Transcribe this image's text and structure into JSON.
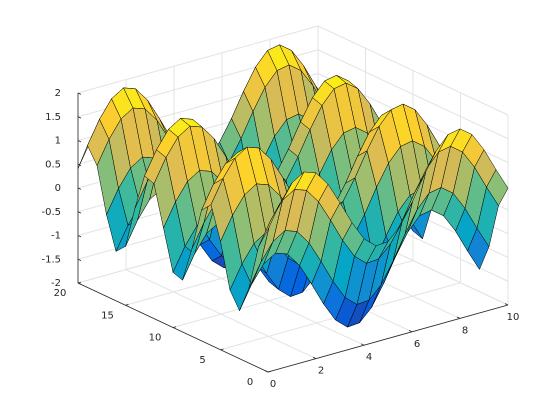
{
  "chart_data": {
    "type": "surface",
    "x": [
      0,
      0.5,
      1,
      1.5,
      2,
      2.5,
      3,
      3.5,
      4,
      4.5,
      5,
      5.5,
      6,
      6.5,
      7,
      7.5,
      8,
      8.5,
      9,
      9.5,
      10
    ],
    "y": [
      0,
      1,
      2,
      3,
      4,
      5,
      6,
      7,
      8,
      9,
      10,
      11,
      12,
      13,
      14,
      15,
      16,
      17,
      18,
      19,
      20
    ],
    "z": [
      [
        1,
        1.48,
        1.84,
        2,
        1.91,
        1.6,
        1.14,
        0.65,
        0.24,
        0.02,
        0.04,
        0.29,
        0.72,
        1.22,
        1.66,
        1.94,
        1.99,
        1.8,
        1.41,
        0.92,
        0.46
      ],
      [
        0.54,
        1.02,
        1.38,
        1.54,
        1.45,
        1.14,
        0.68,
        0.19,
        -0.22,
        -0.44,
        -0.42,
        -0.17,
        0.26,
        0.76,
        1.2,
        1.48,
        1.53,
        1.34,
        0.95,
        0.46,
        0
      ],
      [
        -0.42,
        0.06,
        0.42,
        0.58,
        0.49,
        0.18,
        -0.28,
        -0.77,
        -1.18,
        -1.4,
        -1.38,
        -1.13,
        -0.7,
        -0.2,
        0.24,
        0.52,
        0.57,
        0.38,
        -0.01,
        -0.5,
        -0.96
      ],
      [
        -0.99,
        -0.51,
        -0.15,
        0.01,
        -0.08,
        -0.39,
        -0.85,
        -1.34,
        -1.75,
        -1.97,
        -1.95,
        -1.7,
        -1.27,
        -0.77,
        -0.33,
        -0.05,
        0,
        -0.19,
        -0.58,
        -1.07,
        -1.53
      ],
      [
        -0.65,
        -0.17,
        0.19,
        0.35,
        0.26,
        -0.05,
        -0.51,
        -1,
        -1.41,
        -1.63,
        -1.61,
        -1.36,
        -0.93,
        -0.43,
        0.01,
        0.29,
        0.34,
        0.15,
        -0.24,
        -0.73,
        -1.19
      ],
      [
        0.28,
        0.76,
        1.12,
        1.28,
        1.19,
        0.88,
        0.42,
        -0.07,
        -0.48,
        -0.7,
        -0.68,
        -0.43,
        0,
        0.5,
        0.94,
        1.22,
        1.27,
        1.08,
        0.69,
        0.2,
        -0.26
      ],
      [
        0.96,
        1.44,
        1.8,
        1.96,
        1.87,
        1.56,
        1.1,
        0.61,
        0.2,
        -0.02,
        0,
        0.25,
        0.68,
        1.18,
        1.62,
        1.9,
        1.95,
        1.76,
        1.37,
        0.88,
        0.42
      ],
      [
        0.75,
        1.23,
        1.59,
        1.75,
        1.66,
        1.35,
        0.89,
        0.4,
        -0.01,
        -0.23,
        -0.21,
        0.04,
        0.47,
        0.97,
        1.41,
        1.69,
        1.74,
        1.55,
        1.16,
        0.67,
        0.21
      ],
      [
        -0.15,
        0.33,
        0.69,
        0.85,
        0.76,
        0.45,
        -0.01,
        -0.5,
        -0.91,
        -1.13,
        -1.11,
        -0.86,
        -0.43,
        0.07,
        0.51,
        0.79,
        0.84,
        0.65,
        0.26,
        -0.23,
        -0.69
      ],
      [
        -0.91,
        -0.43,
        -0.07,
        0.09,
        0,
        -0.31,
        -0.77,
        -1.26,
        -1.67,
        -1.89,
        -1.87,
        -1.62,
        -1.19,
        -0.69,
        -0.25,
        0.03,
        0.08,
        -0.11,
        -0.5,
        -0.99,
        -1.45
      ],
      [
        -0.84,
        -0.36,
        0,
        0.16,
        0.07,
        -0.24,
        -0.7,
        -1.19,
        -1.6,
        -1.82,
        -1.8,
        -1.55,
        -1.12,
        -0.62,
        -0.18,
        0.1,
        0.15,
        -0.04,
        -0.43,
        -0.92,
        -1.38
      ],
      [
        0,
        0.48,
        0.84,
        1,
        0.91,
        0.6,
        0.14,
        -0.35,
        -0.76,
        -0.98,
        -0.96,
        -0.71,
        -0.28,
        0.22,
        0.66,
        0.94,
        0.99,
        0.8,
        0.41,
        -0.08,
        -0.54
      ],
      [
        0.84,
        1.32,
        1.68,
        1.84,
        1.75,
        1.44,
        0.98,
        0.49,
        0.08,
        -0.14,
        -0.12,
        0.13,
        0.56,
        1.06,
        1.5,
        1.78,
        1.83,
        1.64,
        1.25,
        0.76,
        0.3
      ],
      [
        0.91,
        1.39,
        1.75,
        1.91,
        1.82,
        1.51,
        1.05,
        0.56,
        0.15,
        -0.07,
        -0.05,
        0.2,
        0.63,
        1.13,
        1.57,
        1.85,
        1.9,
        1.71,
        1.32,
        0.83,
        0.37
      ],
      [
        0.14,
        0.62,
        0.98,
        1.14,
        1.05,
        0.74,
        0.28,
        -0.21,
        -0.62,
        -0.84,
        -0.82,
        -0.57,
        -0.14,
        0.36,
        0.8,
        1.08,
        1.13,
        0.94,
        0.55,
        0.06,
        -0.4
      ],
      [
        -0.76,
        -0.28,
        0.08,
        0.24,
        0.15,
        -0.16,
        -0.62,
        -1.11,
        -1.52,
        -1.74,
        -1.72,
        -1.47,
        -1.04,
        -0.54,
        -0.1,
        0.18,
        0.23,
        0.04,
        -0.35,
        -0.84,
        -1.3
      ],
      [
        -0.96,
        -0.48,
        -0.12,
        0.04,
        -0.05,
        -0.36,
        -0.82,
        -1.31,
        -1.72,
        -1.94,
        -1.92,
        -1.67,
        -1.24,
        -0.74,
        -0.3,
        -0.02,
        0.03,
        -0.16,
        -0.55,
        -1.04,
        -1.5
      ],
      [
        -0.28,
        0.2,
        0.56,
        0.72,
        0.63,
        0.32,
        -0.14,
        -0.63,
        -1.04,
        -1.26,
        -1.24,
        -0.99,
        -0.56,
        -0.06,
        0.38,
        0.66,
        0.71,
        0.52,
        0.13,
        -0.36,
        -0.82
      ],
      [
        0.66,
        1.14,
        1.5,
        1.66,
        1.57,
        1.26,
        0.8,
        0.31,
        -0.1,
        -0.32,
        -0.3,
        -0.05,
        0.38,
        0.88,
        1.32,
        1.6,
        1.65,
        1.46,
        1.07,
        0.58,
        0.12
      ],
      [
        0.99,
        1.47,
        1.83,
        1.99,
        1.9,
        1.59,
        1.13,
        0.64,
        0.23,
        0.01,
        0.03,
        0.28,
        0.71,
        1.21,
        1.65,
        1.93,
        1.98,
        1.79,
        1.4,
        0.91,
        0.45
      ],
      [
        0.41,
        0.89,
        1.25,
        1.41,
        1.32,
        1.01,
        0.55,
        0.06,
        -0.35,
        -0.57,
        -0.55,
        -0.3,
        0.13,
        0.63,
        1.07,
        1.35,
        1.4,
        1.21,
        0.82,
        0.33,
        -0.13
      ]
    ],
    "xlim": [
      0,
      10
    ],
    "xticks": [
      0,
      2,
      4,
      6,
      8,
      10
    ],
    "ylim": [
      0,
      20
    ],
    "yticks": [
      0,
      5,
      10,
      15,
      20
    ],
    "zlim": [
      -2,
      2
    ],
    "zticks": [
      -2,
      -1.5,
      -1,
      -0.5,
      0,
      0.5,
      1,
      1.5,
      2
    ],
    "grid": true,
    "colormap": [
      "#352a87",
      "#0363e1",
      "#1485d4",
      "#06a7c6",
      "#38b99e",
      "#92bf73",
      "#d9ba56",
      "#fcce2e",
      "#f9fb0e"
    ]
  }
}
